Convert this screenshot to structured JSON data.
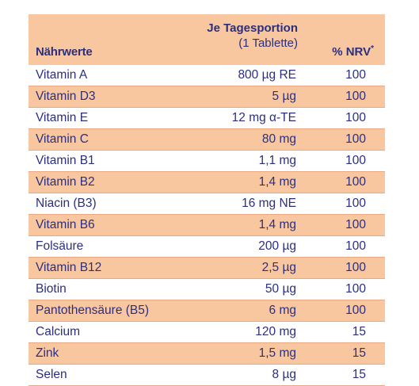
{
  "header": {
    "nutrient_label": "Nährwerte",
    "portion_line1": "Je Tagesportion",
    "portion_line2": "(1 Tablette)",
    "nrv_label": "% NRV",
    "nrv_marker": "*"
  },
  "rows": [
    {
      "name": "Vitamin A",
      "amount": "800 µg RE",
      "nrv": "100"
    },
    {
      "name": "Vitamin D3",
      "amount": "5 µg",
      "nrv": "100"
    },
    {
      "name": "Vitamin E",
      "amount": "12 mg α-TE",
      "nrv": "100"
    },
    {
      "name": "Vitamin C",
      "amount": "80 mg",
      "nrv": "100"
    },
    {
      "name": "Vitamin B1",
      "amount": "1,1 mg",
      "nrv": "100"
    },
    {
      "name": "Vitamin B2",
      "amount": "1,4 mg",
      "nrv": "100"
    },
    {
      "name": "Niacin (B3)",
      "amount": "16 mg NE",
      "nrv": "100"
    },
    {
      "name": "Vitamin B6",
      "amount": "1,4 mg",
      "nrv": "100"
    },
    {
      "name": "Folsäure",
      "amount": "200 µg",
      "nrv": "100"
    },
    {
      "name": "Vitamin B12",
      "amount": "2,5 µg",
      "nrv": "100"
    },
    {
      "name": "Biotin",
      "amount": "50 µg",
      "nrv": "100"
    },
    {
      "name": "Pantothensäure (B5)",
      "amount": "6 mg",
      "nrv": "100"
    },
    {
      "name": "Calcium",
      "amount": "120 mg",
      "nrv": "15"
    },
    {
      "name": "Zink",
      "amount": "1,5 mg",
      "nrv": "15"
    },
    {
      "name": "Selen",
      "amount": "8 µg",
      "nrv": "15"
    }
  ],
  "colors": {
    "text": "#2b2f7e",
    "shade": "#f8c7a0",
    "rule": "#e7a981"
  }
}
